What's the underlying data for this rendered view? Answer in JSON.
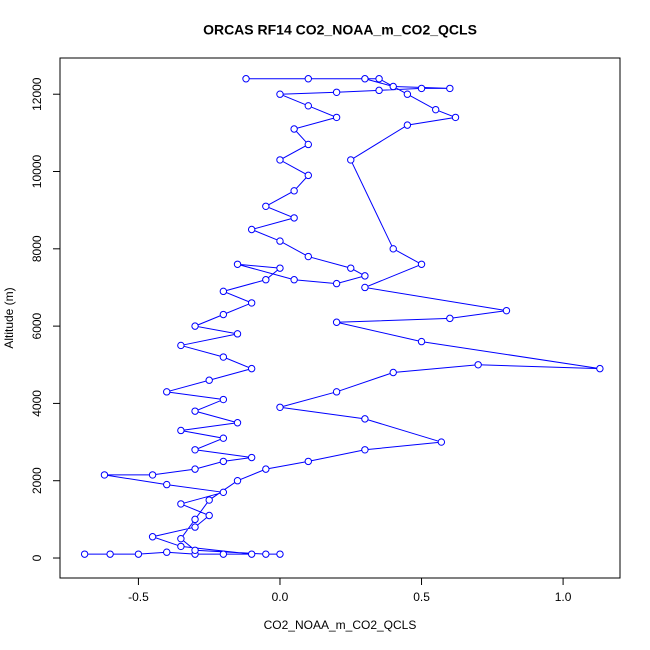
{
  "chart_data": {
    "type": "scatter-line",
    "title": "ORCAS RF14 CO2_NOAA_m_CO2_QCLS",
    "x_label": "CO2_NOAA_m_CO2_QCLS",
    "y_label": "Altitude (m)",
    "xlim": [
      -0.777,
      1.201
    ],
    "ylim": [
      -517,
      12937
    ],
    "xticks": [
      -0.5,
      {
        "value": 0,
        "label": "0.0"
      },
      0.5,
      {
        "value": 1,
        "label": "1.0"
      }
    ],
    "yticks": [
      0,
      2000,
      4000,
      6000,
      8000,
      10000,
      12000
    ],
    "series": [
      {
        "color": "#0000ff",
        "x": [
          -0.69,
          -0.6,
          -0.5,
          -0.4,
          -0.3,
          -0.2,
          -0.1,
          -0.35,
          -0.45,
          -0.3,
          -0.25,
          -0.35,
          -0.2,
          -0.4,
          -0.62,
          -0.45,
          -0.3,
          -0.2,
          -0.1,
          -0.3,
          -0.2,
          -0.35,
          -0.15,
          -0.3,
          -0.2,
          -0.4,
          -0.25,
          -0.1,
          -0.2,
          -0.35,
          -0.15,
          -0.3,
          -0.2,
          -0.1,
          -0.2,
          -0.05,
          0.0,
          -0.15,
          0.05,
          0.2,
          0.3,
          0.25,
          0.1,
          0.0,
          -0.1,
          0.05,
          -0.05,
          0.05,
          0.1,
          0.0,
          0.1,
          0.05,
          0.2,
          0.1,
          0.0,
          0.2,
          0.35,
          0.5,
          0.6,
          0.4,
          0.3,
          0.1,
          -0.12,
          0.35,
          0.45,
          0.55,
          0.62,
          0.45,
          0.25,
          0.4,
          0.5,
          0.3,
          0.8,
          0.6,
          0.2,
          0.5,
          1.13,
          0.7,
          0.4,
          0.2,
          0.0,
          0.3,
          0.57,
          0.3,
          0.1,
          -0.05,
          -0.15,
          -0.25,
          -0.3,
          -0.35,
          -0.3,
          -0.05,
          0.0
        ],
        "y": [
          100,
          100,
          100,
          150,
          100,
          100,
          100,
          300,
          550,
          800,
          1100,
          1400,
          1700,
          1900,
          2150,
          2150,
          2300,
          2500,
          2600,
          2800,
          3100,
          3300,
          3500,
          3800,
          4100,
          4300,
          4600,
          4900,
          5200,
          5500,
          5800,
          6000,
          6300,
          6600,
          6900,
          7200,
          7500,
          7600,
          7200,
          7100,
          7300,
          7500,
          7800,
          8200,
          8500,
          8800,
          9100,
          9500,
          9900,
          10300,
          10700,
          11100,
          11400,
          11700,
          12000,
          12050,
          12100,
          12150,
          12150,
          12200,
          12400,
          12400,
          12400,
          12400,
          12000,
          11600,
          11400,
          11200,
          10300,
          8000,
          7600,
          7000,
          6400,
          6200,
          6100,
          5600,
          4900,
          5000,
          4800,
          4300,
          3900,
          3600,
          3000,
          2800,
          2500,
          2300,
          2000,
          1500,
          1000,
          500,
          200,
          100,
          100
        ]
      }
    ]
  }
}
